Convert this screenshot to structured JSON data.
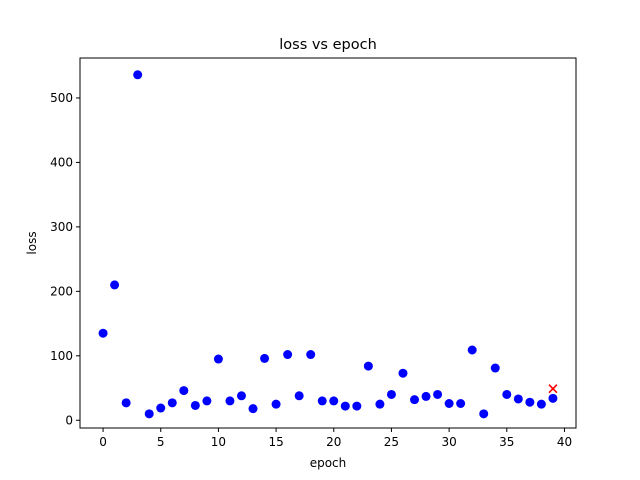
{
  "chart_data": {
    "type": "scatter",
    "title": "loss vs epoch",
    "xlabel": "epoch",
    "ylabel": "loss",
    "xlim": [
      -2,
      41
    ],
    "ylim": [
      -12,
      562
    ],
    "xticks": [
      0,
      5,
      10,
      15,
      20,
      25,
      30,
      35,
      40
    ],
    "yticks": [
      0,
      100,
      200,
      300,
      400,
      500
    ],
    "grid": false,
    "series": [
      {
        "marker": "circle",
        "color": "#0000ff",
        "x": [
          0,
          1,
          2,
          3,
          4,
          5,
          6,
          7,
          8,
          9,
          10,
          11,
          12,
          13,
          14,
          15,
          16,
          17,
          18,
          19,
          20,
          21,
          22,
          23,
          24,
          25,
          26,
          27,
          28,
          29,
          30,
          31,
          32,
          33,
          34,
          35,
          36,
          37,
          38,
          39
        ],
        "y": [
          135,
          210,
          27,
          536,
          10,
          19,
          27,
          46,
          23,
          30,
          95,
          30,
          38,
          18,
          96,
          25,
          102,
          38,
          102,
          30,
          30,
          22,
          22,
          84,
          25,
          40,
          73,
          32,
          37,
          40,
          26,
          26,
          109,
          10,
          81,
          40,
          33,
          28,
          25,
          34
        ]
      },
      {
        "marker": "x",
        "color": "#ff0000",
        "x": [
          39
        ],
        "y": [
          49
        ]
      }
    ]
  }
}
